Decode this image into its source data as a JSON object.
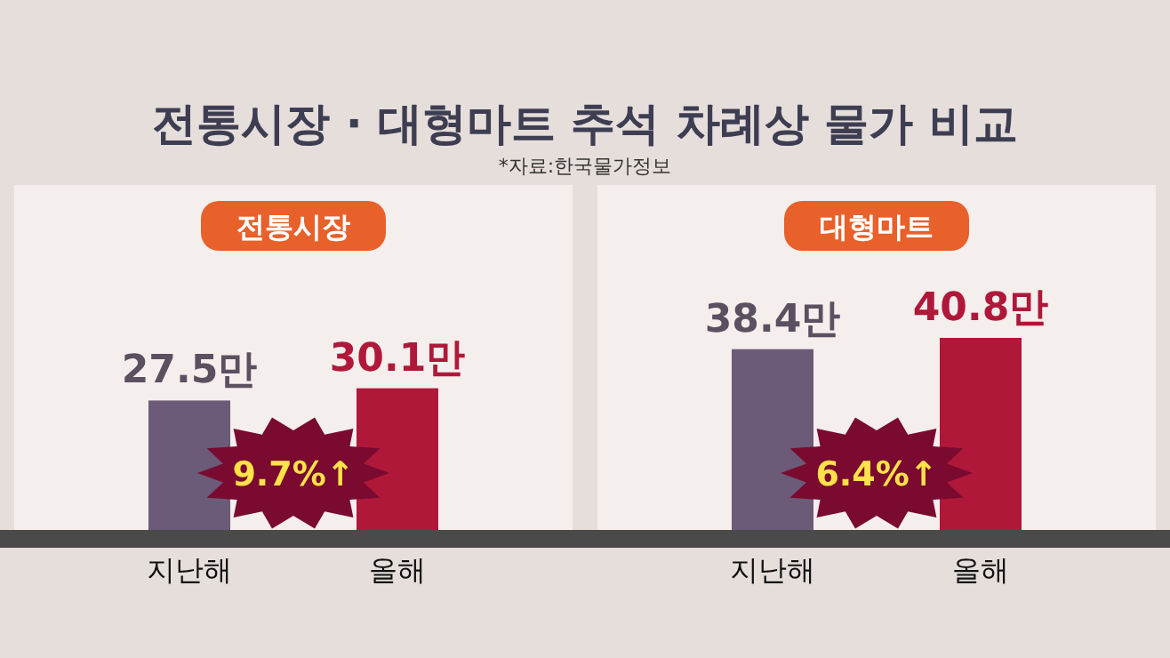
{
  "chart_data": [
    {
      "type": "bar",
      "title": "전통시장 · 대형마트 추석 차례상 물가 비교",
      "subtitle": "전통시장",
      "categories": [
        "지난해",
        "올해"
      ],
      "values": [
        27.5,
        30.1
      ],
      "value_labels": [
        "27.5만",
        "30.1만"
      ],
      "colors": [
        "#6b5a78",
        "#b0183a"
      ],
      "annotations": [
        "*자료:한국물가정보",
        "9.7%↑"
      ]
    },
    {
      "type": "bar",
      "title": "대형마트",
      "categories": [
        "지난해",
        "올해"
      ],
      "values": [
        38.4,
        40.8
      ],
      "value_labels": [
        "38.4만",
        "40.8만"
      ],
      "colors": [
        "#6b5a78",
        "#b0183a"
      ],
      "annotations": [
        "6.4%↑"
      ]
    }
  ]
}
